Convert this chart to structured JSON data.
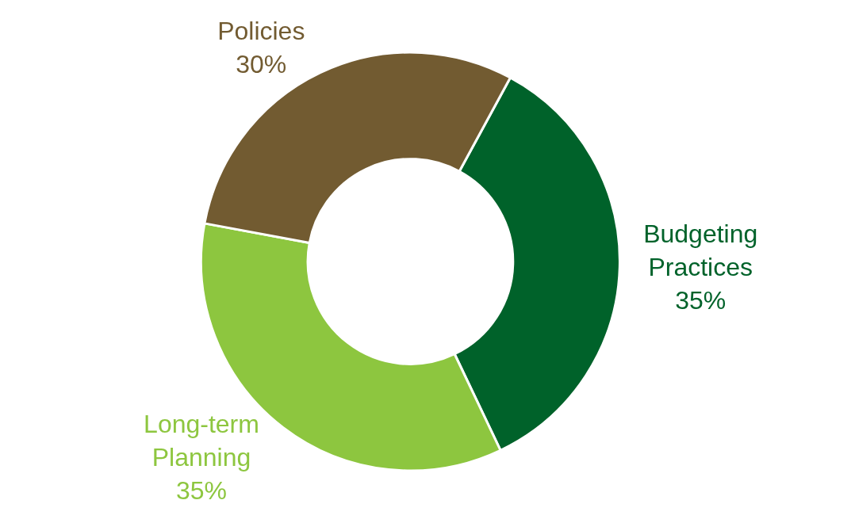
{
  "chart_data": {
    "type": "donut",
    "categories": [
      "Budgeting Practices",
      "Long-term Planning",
      "Policies"
    ],
    "values": [
      35,
      35,
      30
    ],
    "value_labels": [
      "35%",
      "35%",
      "30%"
    ],
    "colors": [
      "#00622a",
      "#8dc63f",
      "#725b31"
    ],
    "legend": false
  }
}
